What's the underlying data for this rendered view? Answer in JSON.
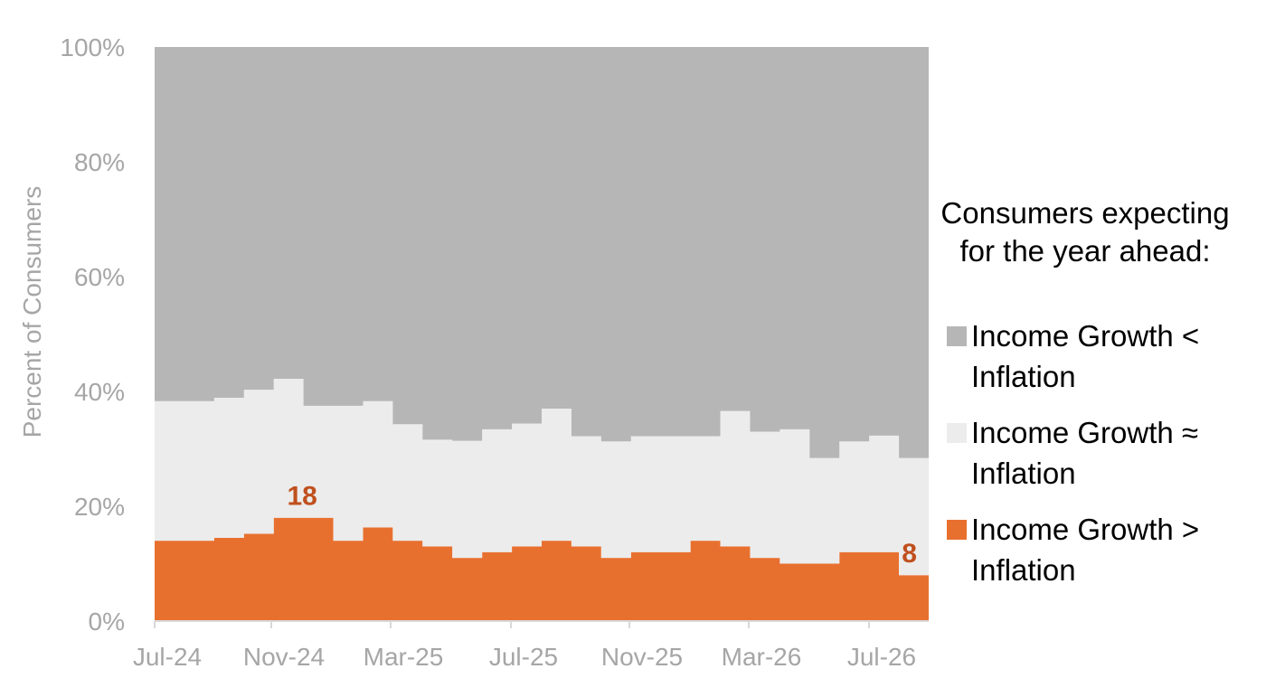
{
  "chart_data": {
    "type": "area",
    "stacked": true,
    "step": true,
    "x_ticks": [
      "Jul-24",
      "Nov-24",
      "Mar-25",
      "Jul-25",
      "Nov-25",
      "Mar-26",
      "Jul-26"
    ],
    "y_ticks": [
      "0%",
      "20%",
      "40%",
      "60%",
      "80%",
      "100%"
    ],
    "ylabel": "Percent of Consumers",
    "ylim": [
      0,
      100
    ],
    "grid": false,
    "legend_title": "Consumers expecting for the year ahead:",
    "legend_position": "right",
    "series": [
      {
        "name": "Income Growth > Inflation",
        "color": "#e8702f",
        "values": [
          14,
          14,
          14.5,
          15.2,
          18,
          18,
          14,
          16.3,
          14,
          13,
          11,
          12,
          13,
          14,
          13,
          11,
          12,
          12,
          14,
          13,
          11,
          10,
          10,
          12,
          12,
          8
        ]
      },
      {
        "name": "Income Growth ≈ Inflation",
        "color": "#ececec",
        "values": [
          24.3,
          24.3,
          24.4,
          25.1,
          24.2,
          19.5,
          23.5,
          22,
          20.3,
          18.6,
          20.4,
          21.4,
          21.4,
          23,
          19.2,
          20.3,
          20.2,
          20.2,
          18.2,
          23.6,
          22,
          23.4,
          18.4,
          19.3,
          20.3,
          20.4
        ]
      },
      {
        "name": "Income Growth < Inflation",
        "color": "#b6b6b6",
        "values": [
          61.7,
          61.7,
          61.1,
          59.7,
          57.8,
          62.5,
          62.5,
          61.7,
          65.7,
          68.4,
          68.6,
          66.6,
          65.6,
          63,
          67.8,
          68.7,
          67.8,
          67.8,
          67.8,
          63.4,
          67,
          66.6,
          71.6,
          68.7,
          67.7,
          71.6
        ]
      }
    ],
    "annotations": [
      {
        "text": "18",
        "series": "Income Growth > Inflation",
        "index": 4
      },
      {
        "text": "8",
        "series": "Income Growth > Inflation",
        "index": 25
      }
    ]
  },
  "legend": {
    "title": "Consumers expecting for the year ahead:",
    "items": [
      {
        "label": "Income Growth < Inflation",
        "color": "#b6b6b6"
      },
      {
        "label": "Income Growth ≈ Inflation",
        "color": "#ececec"
      },
      {
        "label": "Income Growth > Inflation",
        "color": "#e8702f"
      }
    ]
  }
}
